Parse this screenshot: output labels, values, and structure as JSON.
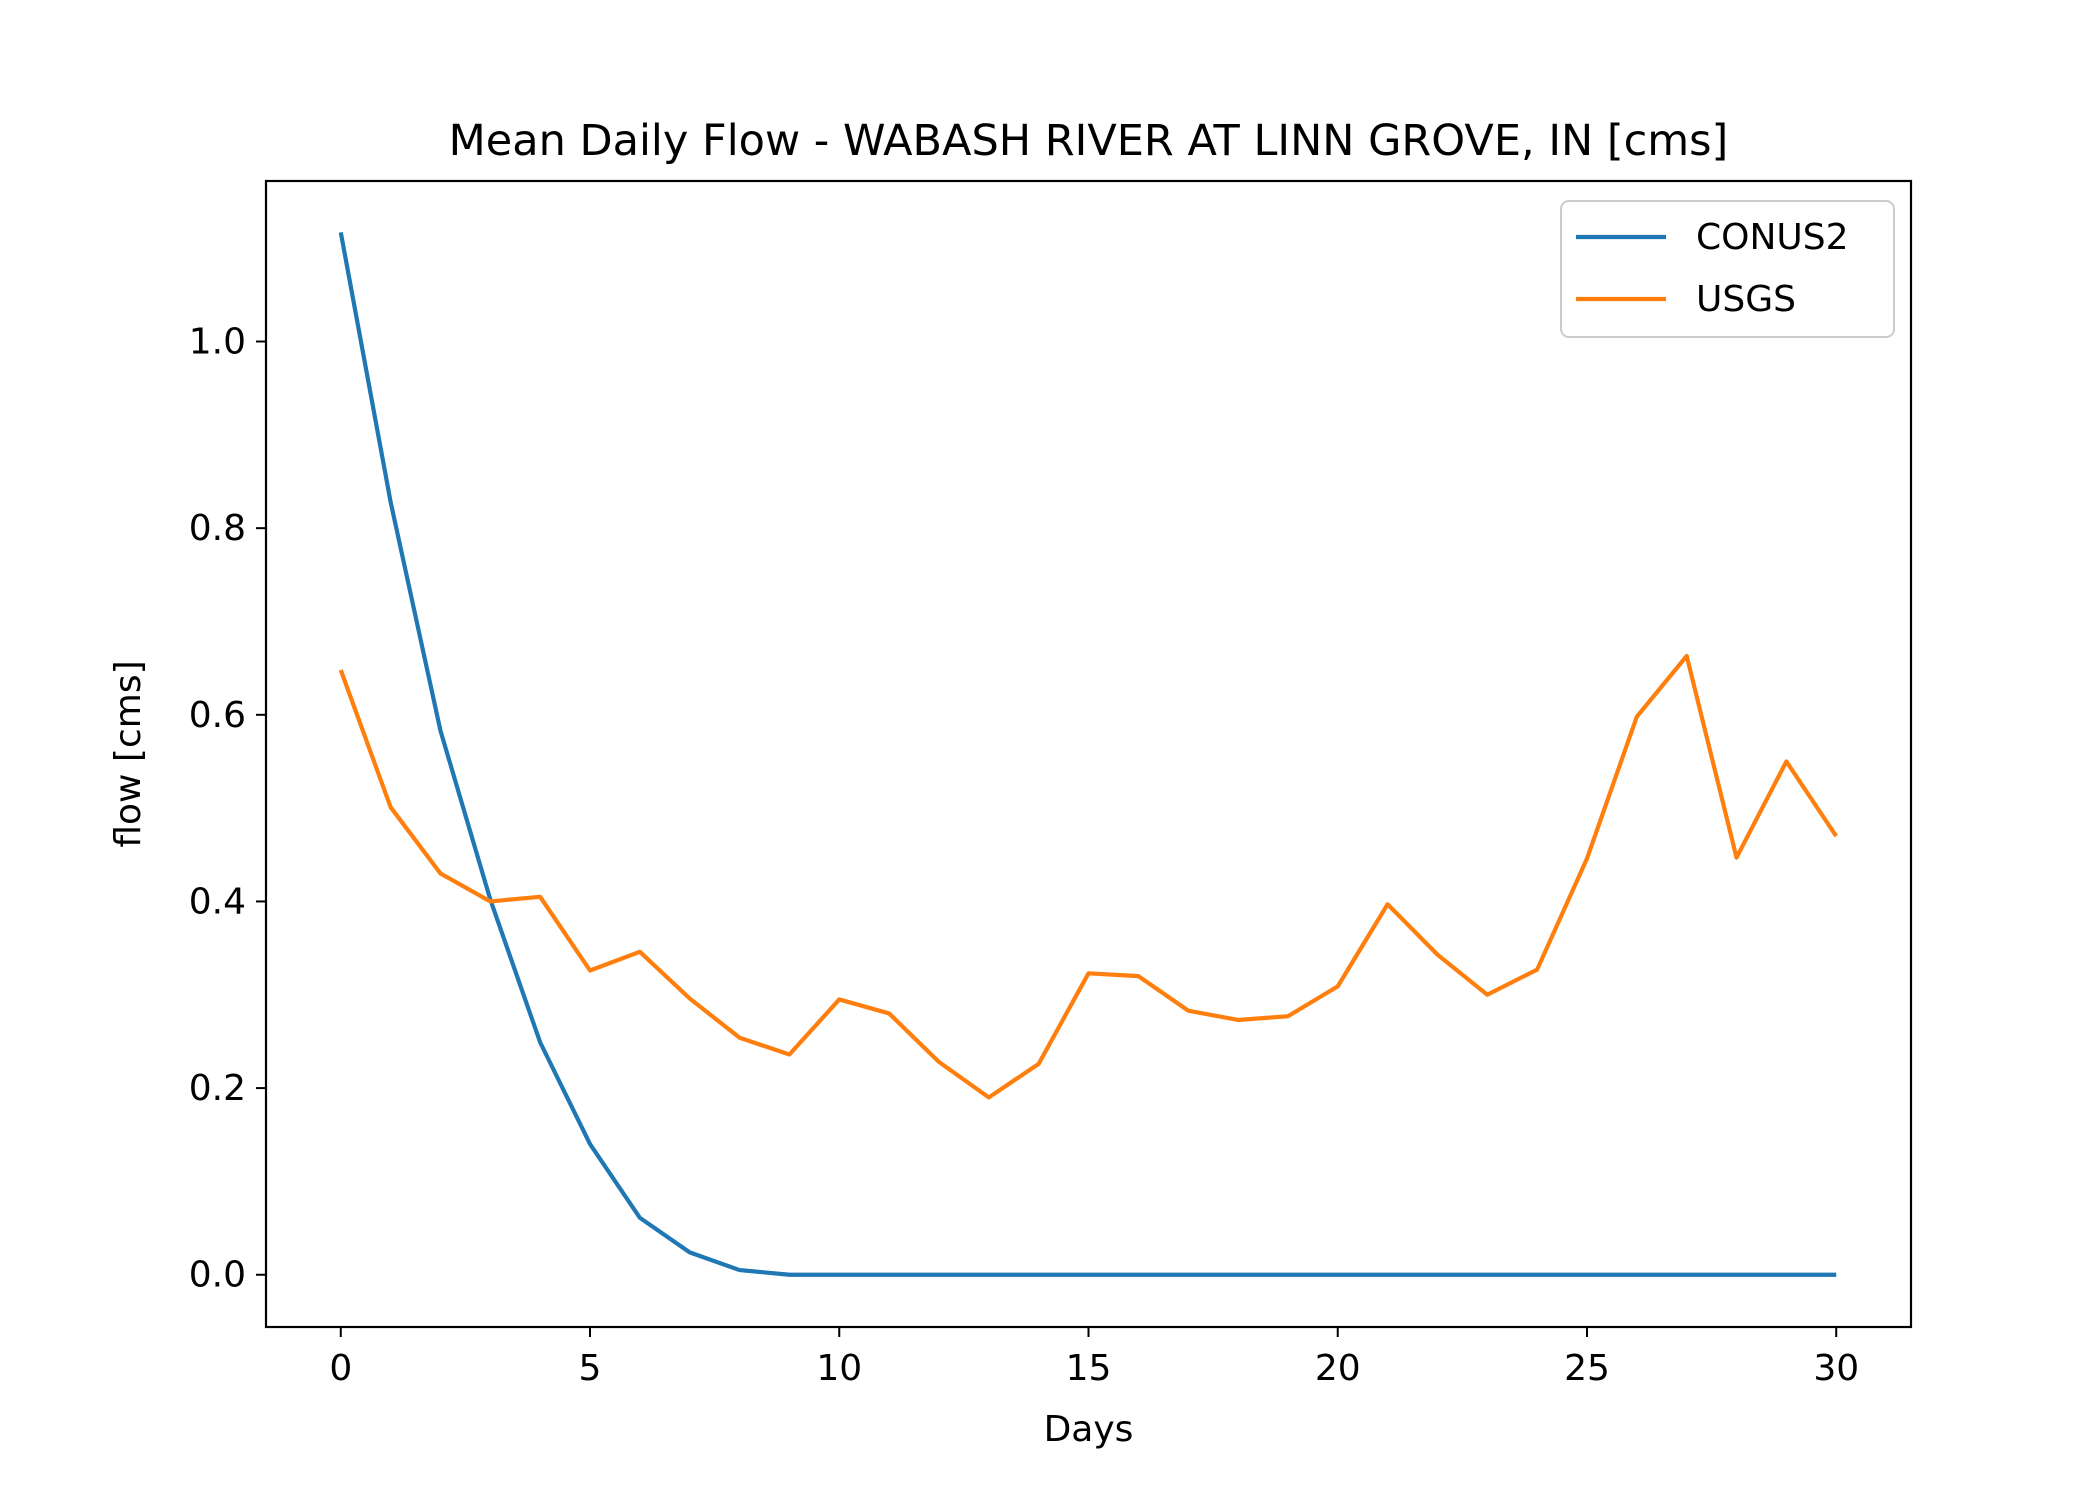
{
  "chart_data": {
    "type": "line",
    "title": "Mean Daily Flow - WABASH RIVER AT LINN GROVE, IN [cms]",
    "xlabel": "Days",
    "ylabel": "flow [cms]",
    "xlim": [
      -1.5,
      31.5
    ],
    "ylim": [
      -0.056,
      1.172
    ],
    "xticks": [
      0,
      5,
      10,
      15,
      20,
      25,
      30
    ],
    "xtick_labels": [
      "0",
      "5",
      "10",
      "15",
      "20",
      "25",
      "30"
    ],
    "yticks": [
      0.0,
      0.2,
      0.4,
      0.6,
      0.8,
      1.0
    ],
    "ytick_labels": [
      "0.0",
      "0.2",
      "0.4",
      "0.6",
      "0.8",
      "1.0"
    ],
    "grid": false,
    "legend_position": "upper-right",
    "x": [
      0,
      1,
      2,
      3,
      4,
      5,
      6,
      7,
      8,
      9,
      10,
      11,
      12,
      13,
      14,
      15,
      16,
      17,
      18,
      19,
      20,
      21,
      22,
      23,
      24,
      25,
      26,
      27,
      28,
      29,
      30
    ],
    "series": [
      {
        "name": "CONUS2",
        "color": "#1f77b4",
        "values": [
          1.117,
          0.828,
          0.583,
          0.402,
          0.249,
          0.14,
          0.061,
          0.024,
          0.005,
          0.0,
          0.0,
          0.0,
          0.0,
          0.0,
          0.0,
          0.0,
          0.0,
          0.0,
          0.0,
          0.0,
          0.0,
          0.0,
          0.0,
          0.0,
          0.0,
          0.0,
          0.0,
          0.0,
          0.0,
          0.0,
          0.0
        ]
      },
      {
        "name": "USGS",
        "color": "#ff7f0e",
        "values": [
          0.648,
          0.501,
          0.43,
          0.4,
          0.405,
          0.326,
          0.346,
          0.296,
          0.254,
          0.236,
          0.295,
          0.28,
          0.228,
          0.19,
          0.226,
          0.323,
          0.32,
          0.283,
          0.273,
          0.277,
          0.309,
          0.397,
          0.343,
          0.3,
          0.327,
          0.446,
          0.598,
          0.663,
          0.447,
          0.55,
          0.47
        ]
      }
    ]
  }
}
